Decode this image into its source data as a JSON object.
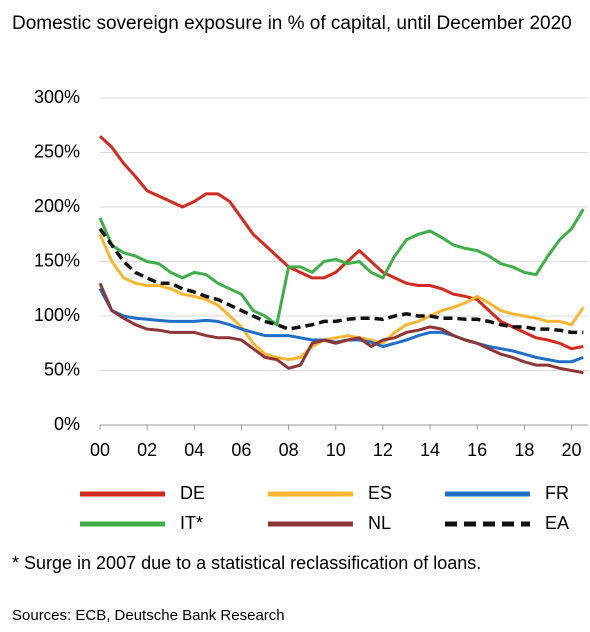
{
  "chart_data": {
    "type": "line",
    "title": "Domestic sovereign exposure in % of capital, until December 2020",
    "note": "* Surge in 2007 due to a statistical reclassification of loans.",
    "source": "Sources: ECB, Deutsche Bank Research",
    "x": [
      2000,
      2000.5,
      2001,
      2001.5,
      2002,
      2002.5,
      2003,
      2003.5,
      2004,
      2004.5,
      2005,
      2005.5,
      2006,
      2006.5,
      2007,
      2007.5,
      2008,
      2008.5,
      2009,
      2009.5,
      2010,
      2010.5,
      2011,
      2011.5,
      2012,
      2012.5,
      2013,
      2013.5,
      2014,
      2014.5,
      2015,
      2015.5,
      2016,
      2016.5,
      2017,
      2017.5,
      2018,
      2018.5,
      2019,
      2019.5,
      2020,
      2020.5
    ],
    "xlim": [
      2000,
      2020.7
    ],
    "xticks": [
      {
        "value": 2000,
        "label": "00"
      },
      {
        "value": 2002,
        "label": "02"
      },
      {
        "value": 2004,
        "label": "04"
      },
      {
        "value": 2006,
        "label": "06"
      },
      {
        "value": 2008,
        "label": "08"
      },
      {
        "value": 2010,
        "label": "10"
      },
      {
        "value": 2012,
        "label": "12"
      },
      {
        "value": 2014,
        "label": "14"
      },
      {
        "value": 2016,
        "label": "16"
      },
      {
        "value": 2018,
        "label": "18"
      },
      {
        "value": 2020,
        "label": "20"
      }
    ],
    "ylim": [
      0,
      300
    ],
    "yticks": [
      {
        "value": 0,
        "label": "0%"
      },
      {
        "value": 50,
        "label": "50%"
      },
      {
        "value": 100,
        "label": "100%"
      },
      {
        "value": 150,
        "label": "150%"
      },
      {
        "value": 200,
        "label": "200%"
      },
      {
        "value": 250,
        "label": "250%"
      },
      {
        "value": 300,
        "label": "300%"
      }
    ],
    "grid": true,
    "series": [
      {
        "name": "DE",
        "color": "#d42a1e",
        "values": [
          265,
          255,
          240,
          228,
          215,
          210,
          205,
          200,
          205,
          212,
          212,
          205,
          190,
          175,
          165,
          155,
          145,
          140,
          135,
          135,
          140,
          150,
          160,
          150,
          140,
          135,
          130,
          128,
          128,
          125,
          120,
          118,
          115,
          105,
          95,
          90,
          85,
          80,
          78,
          75,
          70,
          72
        ]
      },
      {
        "name": "ES",
        "color": "#fbb631",
        "values": [
          175,
          150,
          135,
          130,
          128,
          128,
          125,
          120,
          118,
          115,
          110,
          100,
          90,
          75,
          65,
          62,
          60,
          62,
          72,
          78,
          80,
          82,
          80,
          78,
          75,
          85,
          92,
          95,
          100,
          105,
          108,
          112,
          118,
          112,
          105,
          102,
          100,
          98,
          95,
          95,
          92,
          108
        ]
      },
      {
        "name": "FR",
        "color": "#1f6ec8",
        "values": [
          125,
          105,
          100,
          98,
          97,
          96,
          95,
          95,
          95,
          96,
          95,
          92,
          88,
          85,
          82,
          82,
          82,
          80,
          78,
          78,
          76,
          78,
          78,
          76,
          72,
          75,
          78,
          82,
          85,
          85,
          82,
          78,
          75,
          72,
          70,
          68,
          65,
          62,
          60,
          58,
          58,
          62
        ]
      },
      {
        "name": "IT*",
        "color": "#3fae49",
        "values": [
          190,
          165,
          158,
          155,
          150,
          148,
          140,
          135,
          140,
          138,
          130,
          125,
          120,
          105,
          100,
          92,
          145,
          145,
          140,
          150,
          152,
          148,
          150,
          140,
          135,
          155,
          170,
          175,
          178,
          172,
          165,
          162,
          160,
          155,
          148,
          145,
          140,
          138,
          155,
          170,
          180,
          198
        ]
      },
      {
        "name": "NL",
        "color": "#8e3535",
        "values": [
          130,
          105,
          98,
          92,
          88,
          87,
          85,
          85,
          85,
          82,
          80,
          80,
          78,
          70,
          62,
          60,
          52,
          55,
          75,
          78,
          75,
          78,
          80,
          72,
          78,
          80,
          85,
          87,
          90,
          88,
          82,
          78,
          75,
          70,
          65,
          62,
          58,
          55,
          55,
          52,
          50,
          48
        ]
      },
      {
        "name": "EA",
        "color": "#111111",
        "dash": true,
        "values": [
          180,
          165,
          150,
          140,
          135,
          130,
          130,
          125,
          122,
          118,
          115,
          110,
          105,
          100,
          95,
          92,
          88,
          90,
          92,
          95,
          95,
          97,
          98,
          98,
          97,
          100,
          102,
          100,
          100,
          98,
          98,
          97,
          97,
          95,
          92,
          90,
          90,
          88,
          88,
          87,
          85,
          85
        ]
      }
    ]
  }
}
